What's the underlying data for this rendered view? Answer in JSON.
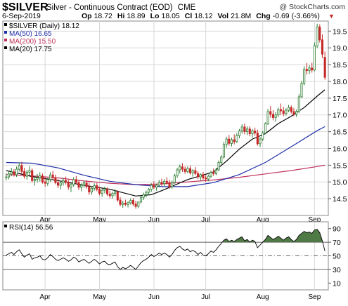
{
  "header": {
    "symbol": "$SILVER",
    "description": "Silver - Continuous Contract (EOD)",
    "exchange": "CME",
    "watermark": "@ StockCharts.com",
    "date": "6-Sep-2019",
    "quote": [
      {
        "label": "Op",
        "value": "18.72"
      },
      {
        "label": "Hi",
        "value": "18.89"
      },
      {
        "label": "Lo",
        "value": "18.05"
      },
      {
        "label": "Cl",
        "value": "18.12"
      },
      {
        "label": "Vol",
        "value": "21.8M"
      },
      {
        "label": "Chg",
        "value": "-0.69 (-3.66%)"
      }
    ],
    "down_marker": "▼"
  },
  "colors": {
    "up": "#2e7d32",
    "down": "#c62828",
    "ma50": "#1f2fa8",
    "ma200": "#c0305a",
    "ma20": "#000000",
    "rsi_line": "#000000",
    "rsi_fill": "#4f7a45",
    "grid": "#d8d8d8",
    "panel_bg": "#ffffff"
  },
  "chart_data": [
    {
      "type": "candlestick",
      "title": "$SILVER (Daily) 18.12",
      "legend_placement": "top-left",
      "grid": true,
      "ylim": [
        14.0,
        19.8
      ],
      "yticks": [
        14.5,
        15.0,
        15.5,
        16.0,
        16.5,
        17.0,
        17.5,
        18.0,
        18.5,
        19.0,
        19.5
      ],
      "xticks": [
        {
          "label": "Apr",
          "index": 15
        },
        {
          "label": "May",
          "index": 36
        },
        {
          "label": "Jun",
          "index": 57
        },
        {
          "label": "Jul",
          "index": 77
        },
        {
          "label": "Aug",
          "index": 99
        },
        {
          "label": "Sep",
          "index": 119
        }
      ],
      "legend": [
        {
          "label": "$SILVER (Daily) 18.12",
          "key": "price"
        },
        {
          "label": "MA(50) 16.65",
          "key": "ma50"
        },
        {
          "label": "MA(200) 15.50",
          "key": "ma200"
        },
        {
          "label": "MA(20) 17.75",
          "key": "ma20"
        }
      ],
      "ohlc": [
        [
          15.14,
          15.26,
          15.05,
          15.15
        ],
        [
          15.15,
          15.33,
          15.08,
          15.24
        ],
        [
          15.24,
          15.42,
          15.17,
          15.3
        ],
        [
          15.3,
          15.38,
          15.16,
          15.22
        ],
        [
          15.22,
          15.46,
          15.15,
          15.38
        ],
        [
          15.38,
          15.58,
          15.31,
          15.49
        ],
        [
          15.49,
          15.6,
          15.24,
          15.31
        ],
        [
          15.31,
          15.42,
          15.1,
          15.17
        ],
        [
          15.17,
          15.36,
          15.07,
          15.29
        ],
        [
          15.29,
          15.47,
          15.19,
          15.34
        ],
        [
          15.34,
          15.4,
          14.98,
          15.04
        ],
        [
          15.04,
          15.16,
          14.89,
          15.08
        ],
        [
          15.08,
          15.24,
          14.98,
          15.12
        ],
        [
          15.12,
          15.29,
          15.01,
          15.18
        ],
        [
          15.18,
          15.25,
          14.95,
          15.0
        ],
        [
          15.0,
          15.14,
          14.86,
          14.96
        ],
        [
          14.96,
          15.12,
          14.88,
          15.07
        ],
        [
          15.07,
          15.29,
          15.0,
          15.21
        ],
        [
          15.21,
          15.33,
          15.06,
          15.13
        ],
        [
          15.13,
          15.22,
          14.93,
          14.98
        ],
        [
          14.98,
          15.08,
          14.82,
          14.9
        ],
        [
          14.9,
          15.04,
          14.78,
          14.97
        ],
        [
          14.97,
          15.12,
          14.89,
          15.04
        ],
        [
          15.04,
          15.16,
          14.92,
          14.99
        ],
        [
          14.99,
          15.06,
          14.77,
          14.85
        ],
        [
          14.85,
          14.96,
          14.7,
          14.92
        ],
        [
          14.92,
          15.14,
          14.86,
          15.07
        ],
        [
          15.07,
          15.18,
          14.93,
          14.98
        ],
        [
          14.98,
          15.05,
          14.76,
          14.84
        ],
        [
          14.84,
          14.96,
          14.72,
          14.9
        ],
        [
          14.9,
          15.04,
          14.83,
          14.97
        ],
        [
          14.97,
          15.05,
          14.8,
          14.86
        ],
        [
          14.86,
          14.98,
          14.62,
          14.7
        ],
        [
          14.7,
          14.88,
          14.62,
          14.81
        ],
        [
          14.81,
          14.96,
          14.74,
          14.89
        ],
        [
          14.89,
          14.97,
          14.72,
          14.78
        ],
        [
          14.78,
          14.86,
          14.6,
          14.66
        ],
        [
          14.66,
          14.8,
          14.56,
          14.75
        ],
        [
          14.75,
          14.86,
          14.66,
          14.79
        ],
        [
          14.79,
          14.84,
          14.58,
          14.64
        ],
        [
          14.64,
          14.74,
          14.51,
          14.59
        ],
        [
          14.59,
          14.71,
          14.5,
          14.66
        ],
        [
          14.66,
          14.78,
          14.57,
          14.7
        ],
        [
          14.7,
          14.75,
          14.41,
          14.46
        ],
        [
          14.46,
          14.55,
          14.27,
          14.33
        ],
        [
          14.33,
          14.44,
          14.23,
          14.37
        ],
        [
          14.37,
          14.47,
          14.28,
          14.33
        ],
        [
          14.33,
          14.42,
          14.24,
          14.38
        ],
        [
          14.38,
          14.51,
          14.32,
          14.45
        ],
        [
          14.45,
          14.52,
          14.28,
          14.34
        ],
        [
          14.34,
          14.44,
          14.2,
          14.27
        ],
        [
          14.27,
          14.42,
          14.22,
          14.4
        ],
        [
          14.4,
          14.58,
          14.36,
          14.54
        ],
        [
          14.54,
          14.68,
          14.46,
          14.62
        ],
        [
          14.62,
          14.74,
          14.54,
          14.69
        ],
        [
          14.69,
          14.82,
          14.6,
          14.78
        ],
        [
          14.78,
          14.96,
          14.71,
          14.9
        ],
        [
          14.9,
          15.02,
          14.79,
          14.84
        ],
        [
          14.84,
          14.95,
          14.74,
          14.9
        ],
        [
          14.9,
          15.06,
          14.84,
          14.99
        ],
        [
          14.99,
          15.1,
          14.88,
          14.95
        ],
        [
          14.95,
          15.08,
          14.86,
          15.02
        ],
        [
          15.02,
          15.14,
          14.92,
          14.98
        ],
        [
          14.98,
          15.06,
          14.8,
          14.86
        ],
        [
          14.86,
          15.04,
          14.8,
          14.98
        ],
        [
          14.98,
          15.24,
          14.95,
          15.18
        ],
        [
          15.18,
          15.42,
          15.12,
          15.36
        ],
        [
          15.36,
          15.52,
          15.25,
          15.45
        ],
        [
          15.45,
          15.56,
          15.3,
          15.38
        ],
        [
          15.38,
          15.46,
          15.24,
          15.31
        ],
        [
          15.31,
          15.46,
          15.26,
          15.4
        ],
        [
          15.4,
          15.49,
          15.22,
          15.27
        ],
        [
          15.27,
          15.38,
          15.16,
          15.34
        ],
        [
          15.34,
          15.44,
          15.2,
          15.25
        ],
        [
          15.25,
          15.32,
          15.08,
          15.15
        ],
        [
          15.15,
          15.26,
          15.04,
          15.22
        ],
        [
          15.22,
          15.3,
          15.06,
          15.12
        ],
        [
          15.12,
          15.2,
          15.0,
          15.09
        ],
        [
          15.09,
          15.22,
          15.02,
          15.17
        ],
        [
          15.17,
          15.34,
          15.12,
          15.29
        ],
        [
          15.29,
          15.4,
          15.18,
          15.25
        ],
        [
          15.25,
          15.42,
          15.2,
          15.36
        ],
        [
          15.36,
          15.64,
          15.32,
          15.58
        ],
        [
          15.58,
          15.8,
          15.52,
          15.74
        ],
        [
          15.74,
          16.2,
          15.7,
          16.12
        ],
        [
          16.12,
          16.35,
          16.02,
          16.28
        ],
        [
          16.28,
          16.4,
          16.08,
          16.15
        ],
        [
          16.15,
          16.32,
          16.06,
          16.26
        ],
        [
          16.26,
          16.42,
          16.12,
          16.2
        ],
        [
          16.2,
          16.46,
          16.16,
          16.38
        ],
        [
          16.38,
          16.58,
          16.3,
          16.52
        ],
        [
          16.52,
          16.72,
          16.44,
          16.64
        ],
        [
          16.64,
          16.74,
          16.42,
          16.5
        ],
        [
          16.5,
          16.66,
          16.4,
          16.58
        ],
        [
          16.58,
          16.66,
          16.36,
          16.44
        ],
        [
          16.44,
          16.58,
          16.32,
          16.52
        ],
        [
          16.52,
          16.62,
          16.38,
          16.46
        ],
        [
          16.46,
          16.56,
          16.08,
          16.14
        ],
        [
          16.14,
          16.34,
          16.04,
          16.28
        ],
        [
          16.28,
          16.52,
          16.22,
          16.46
        ],
        [
          16.46,
          16.78,
          16.42,
          16.74
        ],
        [
          16.74,
          17.18,
          16.7,
          17.1
        ],
        [
          17.1,
          17.26,
          16.92,
          17.02
        ],
        [
          17.02,
          17.14,
          16.84,
          16.92
        ],
        [
          16.92,
          17.08,
          16.8,
          17.0
        ],
        [
          17.0,
          17.22,
          16.94,
          17.16
        ],
        [
          17.16,
          17.34,
          17.0,
          17.12
        ],
        [
          17.12,
          17.24,
          16.96,
          17.04
        ],
        [
          17.04,
          17.2,
          16.98,
          17.14
        ],
        [
          17.14,
          17.3,
          17.08,
          17.22
        ],
        [
          17.22,
          17.28,
          17.04,
          17.1
        ],
        [
          17.1,
          17.2,
          16.96,
          17.02
        ],
        [
          17.02,
          17.16,
          16.94,
          17.1
        ],
        [
          17.1,
          17.62,
          17.06,
          17.54
        ],
        [
          17.54,
          18.02,
          17.5,
          17.94
        ],
        [
          17.94,
          18.45,
          17.88,
          18.36
        ],
        [
          18.36,
          18.55,
          18.2,
          18.32
        ],
        [
          18.32,
          18.48,
          18.22,
          18.4
        ],
        [
          18.4,
          18.56,
          18.26,
          18.34
        ],
        [
          18.34,
          19.16,
          18.3,
          19.06
        ],
        [
          19.06,
          19.72,
          19.0,
          19.62
        ],
        [
          19.62,
          19.7,
          19.16,
          19.24
        ],
        [
          19.24,
          19.4,
          18.7,
          18.81
        ],
        [
          18.72,
          18.89,
          18.05,
          18.12
        ]
      ],
      "ma50": [
        [
          0,
          15.58
        ],
        [
          10,
          15.56
        ],
        [
          20,
          15.42
        ],
        [
          30,
          15.2
        ],
        [
          40,
          15.02
        ],
        [
          50,
          14.92
        ],
        [
          60,
          14.86
        ],
        [
          70,
          14.86
        ],
        [
          80,
          14.98
        ],
        [
          90,
          15.22
        ],
        [
          100,
          15.58
        ],
        [
          110,
          16.05
        ],
        [
          120,
          16.53
        ],
        [
          123,
          16.65
        ]
      ],
      "ma200": [
        [
          0,
          15.22
        ],
        [
          10,
          15.18
        ],
        [
          20,
          15.12
        ],
        [
          30,
          15.03
        ],
        [
          40,
          14.96
        ],
        [
          50,
          14.92
        ],
        [
          60,
          14.94
        ],
        [
          70,
          15.0
        ],
        [
          80,
          15.06
        ],
        [
          90,
          15.14
        ],
        [
          100,
          15.24
        ],
        [
          110,
          15.34
        ],
        [
          120,
          15.46
        ],
        [
          123,
          15.5
        ]
      ],
      "ma20": [
        [
          0,
          15.34
        ],
        [
          10,
          15.16
        ],
        [
          20,
          15.04
        ],
        [
          30,
          14.9
        ],
        [
          40,
          14.78
        ],
        [
          50,
          14.58
        ],
        [
          56,
          14.62
        ],
        [
          60,
          14.74
        ],
        [
          70,
          15.07
        ],
        [
          80,
          15.3
        ],
        [
          85,
          15.62
        ],
        [
          90,
          15.98
        ],
        [
          95,
          16.28
        ],
        [
          100,
          16.44
        ],
        [
          105,
          16.74
        ],
        [
          110,
          16.96
        ],
        [
          115,
          17.22
        ],
        [
          120,
          17.56
        ],
        [
          123,
          17.75
        ]
      ]
    },
    {
      "type": "line",
      "title": "RSI(14) 56.56",
      "legend_placement": "top-left",
      "grid": true,
      "ylim": [
        0,
        100
      ],
      "yticks": [
        10,
        30,
        50,
        70,
        90
      ],
      "reference_lines": [
        30,
        50,
        70
      ],
      "fill_above": 70,
      "xticks": [
        {
          "label": "Apr",
          "index": 15
        },
        {
          "label": "May",
          "index": 36
        },
        {
          "label": "Jun",
          "index": 57
        },
        {
          "label": "Jul",
          "index": 77
        },
        {
          "label": "Aug",
          "index": 99
        },
        {
          "label": "Sep",
          "index": 119
        }
      ],
      "values": [
        51,
        53,
        55,
        52,
        56,
        59,
        53,
        48,
        51,
        53,
        45,
        47,
        48,
        50,
        45,
        44,
        47,
        52,
        49,
        45,
        43,
        45,
        47,
        45,
        42,
        44,
        48,
        46,
        41,
        43,
        45,
        42,
        39,
        42,
        45,
        42,
        38,
        41,
        42,
        38,
        37,
        39,
        41,
        34,
        30,
        33,
        31,
        33,
        36,
        33,
        30,
        35,
        40,
        43,
        45,
        48,
        52,
        49,
        51,
        54,
        52,
        54,
        52,
        48,
        52,
        58,
        62,
        64,
        60,
        58,
        60,
        56,
        58,
        56,
        52,
        55,
        51,
        50,
        53,
        57,
        55,
        59,
        64,
        68,
        73,
        75,
        71,
        73,
        71,
        74,
        76,
        78,
        72,
        74,
        70,
        73,
        71,
        62,
        66,
        70,
        74,
        80,
        77,
        74,
        76,
        79,
        76,
        73,
        76,
        78,
        74,
        71,
        74,
        80,
        83,
        86,
        84,
        85,
        83,
        88,
        89,
        84,
        72,
        57
      ]
    }
  ]
}
